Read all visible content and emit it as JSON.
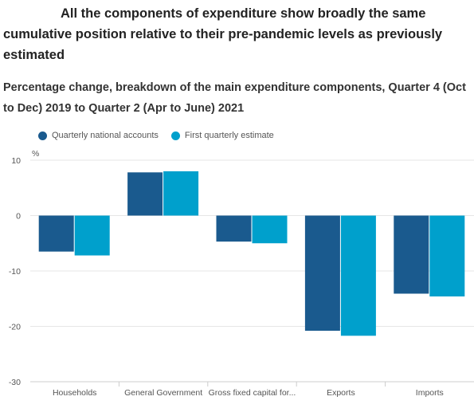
{
  "title": "All the components of expenditure show broadly the same cumulative position relative to their pre-pandemic levels as previously estimated",
  "subtitle": "Percentage change, breakdown of the main expenditure components, Quarter 4 (Oct to Dec) 2019 to Quarter 2 (Apr to June) 2021",
  "colors": {
    "series_1": "#1a5a8e",
    "series_2": "#00a0cc",
    "grid": "#e6e6e6",
    "axis": "#cccccc"
  },
  "chart_data": {
    "type": "bar",
    "title": "",
    "ylabel": "%",
    "xlabel": "",
    "ylim": [
      -30,
      10
    ],
    "yticks": [
      10,
      0,
      -10,
      -20,
      -30
    ],
    "grid": true,
    "legend_position": "top-left",
    "categories": [
      "Households",
      "General Government",
      "Gross fixed capital for...",
      "Exports",
      "Imports"
    ],
    "series": [
      {
        "name": "Quarterly national accounts",
        "values": [
          -6.5,
          7.8,
          -4.7,
          -20.8,
          -14.1
        ]
      },
      {
        "name": "First quarterly estimate",
        "values": [
          -7.2,
          8.0,
          -5.0,
          -21.7,
          -14.6
        ]
      }
    ]
  }
}
